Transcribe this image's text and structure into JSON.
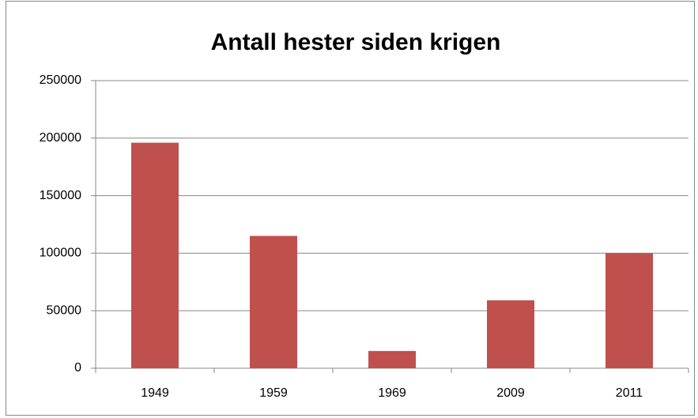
{
  "chart_data": {
    "type": "bar",
    "title": "Antall hester siden krigen",
    "categories": [
      "1949",
      "1959",
      "1969",
      "2009",
      "2011"
    ],
    "values": [
      196000,
      115000,
      15000,
      59000,
      100000
    ],
    "color": "#c0504d",
    "ylim": [
      0,
      250000
    ],
    "yticks": [
      0,
      50000,
      100000,
      150000,
      200000,
      250000
    ],
    "grid": true
  }
}
